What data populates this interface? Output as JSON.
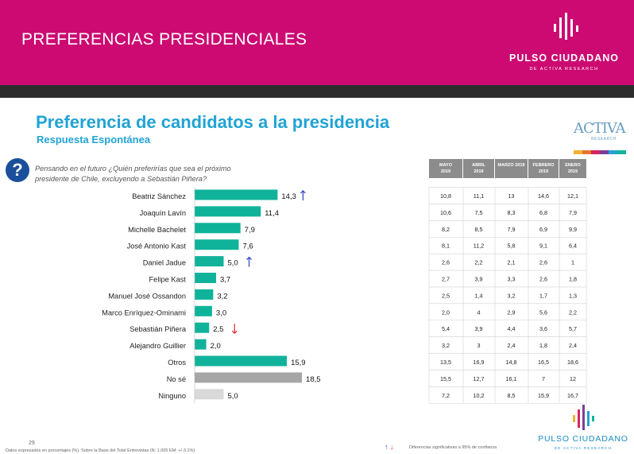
{
  "header": {
    "title": "PREFERENCIAS PRESIDENCIALES",
    "logo_name": "PULSO CIUDADANO",
    "logo_sub": "DE ACTIVA RESEARCH"
  },
  "section": {
    "title": "Preferencia de candidatos a la presidencia",
    "subtitle": "Respuesta Espontánea"
  },
  "activa_logo": {
    "word": "ACTIVA",
    "sub": "RESEARCH"
  },
  "question": {
    "line1": "Pensando en el futuro ¿Quién preferirías que sea el próximo",
    "line2": "presidente de Chile, excluyendo a Sebastián Piñera?"
  },
  "colors": {
    "header": "#cc0a72",
    "bar_main": "#10b39a",
    "bar_gray": "#a6a6a6",
    "bar_light": "#d9d9d9",
    "arrow_up": "#2a3fc7",
    "arrow_down": "#e0262b",
    "title_blue": "#21a3d4"
  },
  "chart_data": {
    "type": "bar",
    "orientation": "horizontal",
    "categories": [
      "Beatriz Sánchez",
      "Joaquín Lavín",
      "Michelle Bachelet",
      "José Antonio Kast",
      "Daniel Jadue",
      "Felipe Kast",
      "Manuel José Ossandon",
      "Marco Enríquez-Ominami",
      "Sebastián Piñera",
      "Alejandro Guillier",
      "Otros",
      "No sé",
      "Ninguno"
    ],
    "values": [
      14.3,
      11.4,
      7.9,
      7.6,
      5.0,
      3.7,
      3.2,
      3.0,
      2.5,
      2.0,
      15.9,
      18.5,
      5.0
    ],
    "value_labels": [
      "14,3",
      "11,4",
      "7,9",
      "7,6",
      "5,0",
      "3,7",
      "3,2",
      "3,0",
      "2,5",
      "2,0",
      "15,9",
      "18,5",
      "5,0"
    ],
    "bar_styles": [
      "main",
      "main",
      "main",
      "main",
      "main",
      "main",
      "main",
      "main",
      "main",
      "main",
      "main",
      "gray",
      "light"
    ],
    "significance": [
      "up",
      "",
      "",
      "",
      "up",
      "",
      "",
      "",
      "down",
      "",
      "",
      "",
      ""
    ],
    "table": {
      "columns": [
        {
          "month": "MAYO",
          "year": "2019"
        },
        {
          "month": "ABRIL",
          "year": "2019"
        },
        {
          "month": "MARZO 2019",
          "year": ""
        },
        {
          "month": "FEBRERO",
          "year": "2019"
        },
        {
          "month": "ENERO",
          "year": "2019"
        }
      ],
      "rows": [
        [
          "10,8",
          "11,1",
          "13",
          "14,6",
          "12,1"
        ],
        [
          "10,6",
          "7,5",
          "8,3",
          "6,8",
          "7,9"
        ],
        [
          "8,2",
          "8,5",
          "7,9",
          "6,9",
          "9,9"
        ],
        [
          "8,1",
          "11,2",
          "5,8",
          "9,1",
          "6,4"
        ],
        [
          "2,6",
          "2,2",
          "2,1",
          "2,6",
          "1"
        ],
        [
          "2,7",
          "3,9",
          "3,3",
          "2,6",
          "1,8"
        ],
        [
          "2,5",
          "1,4",
          "3,2",
          "1,7",
          "1,3"
        ],
        [
          "2,0",
          "4",
          "2,9",
          "5,6",
          "2,2"
        ],
        [
          "5,4",
          "3,9",
          "4,4",
          "3,6",
          "5,7"
        ],
        [
          "3,2",
          "3",
          "2,4",
          "1,8",
          "2,4"
        ],
        [
          "13,5",
          "16,9",
          "14,8",
          "16,5",
          "18,6"
        ],
        [
          "15,5",
          "12,7",
          "16,1",
          "7",
          "12"
        ],
        [
          "7,2",
          "10,2",
          "8,5",
          "15,9",
          "16,7"
        ]
      ]
    }
  },
  "footer": {
    "page_number": "29",
    "note": "Datos expresados en porcentajes (%). Sobre la Base del Total Entrevistas (N: 1.005 EM: +/-3,1%)",
    "arrow_up": "↑",
    "arrow_down": "↓",
    "significance_note": "Diferencias significativas a 95% de confianza",
    "logo_name": "PULSO CIUDADANO",
    "logo_sub": "DE ACTIVA RESEARCH"
  }
}
